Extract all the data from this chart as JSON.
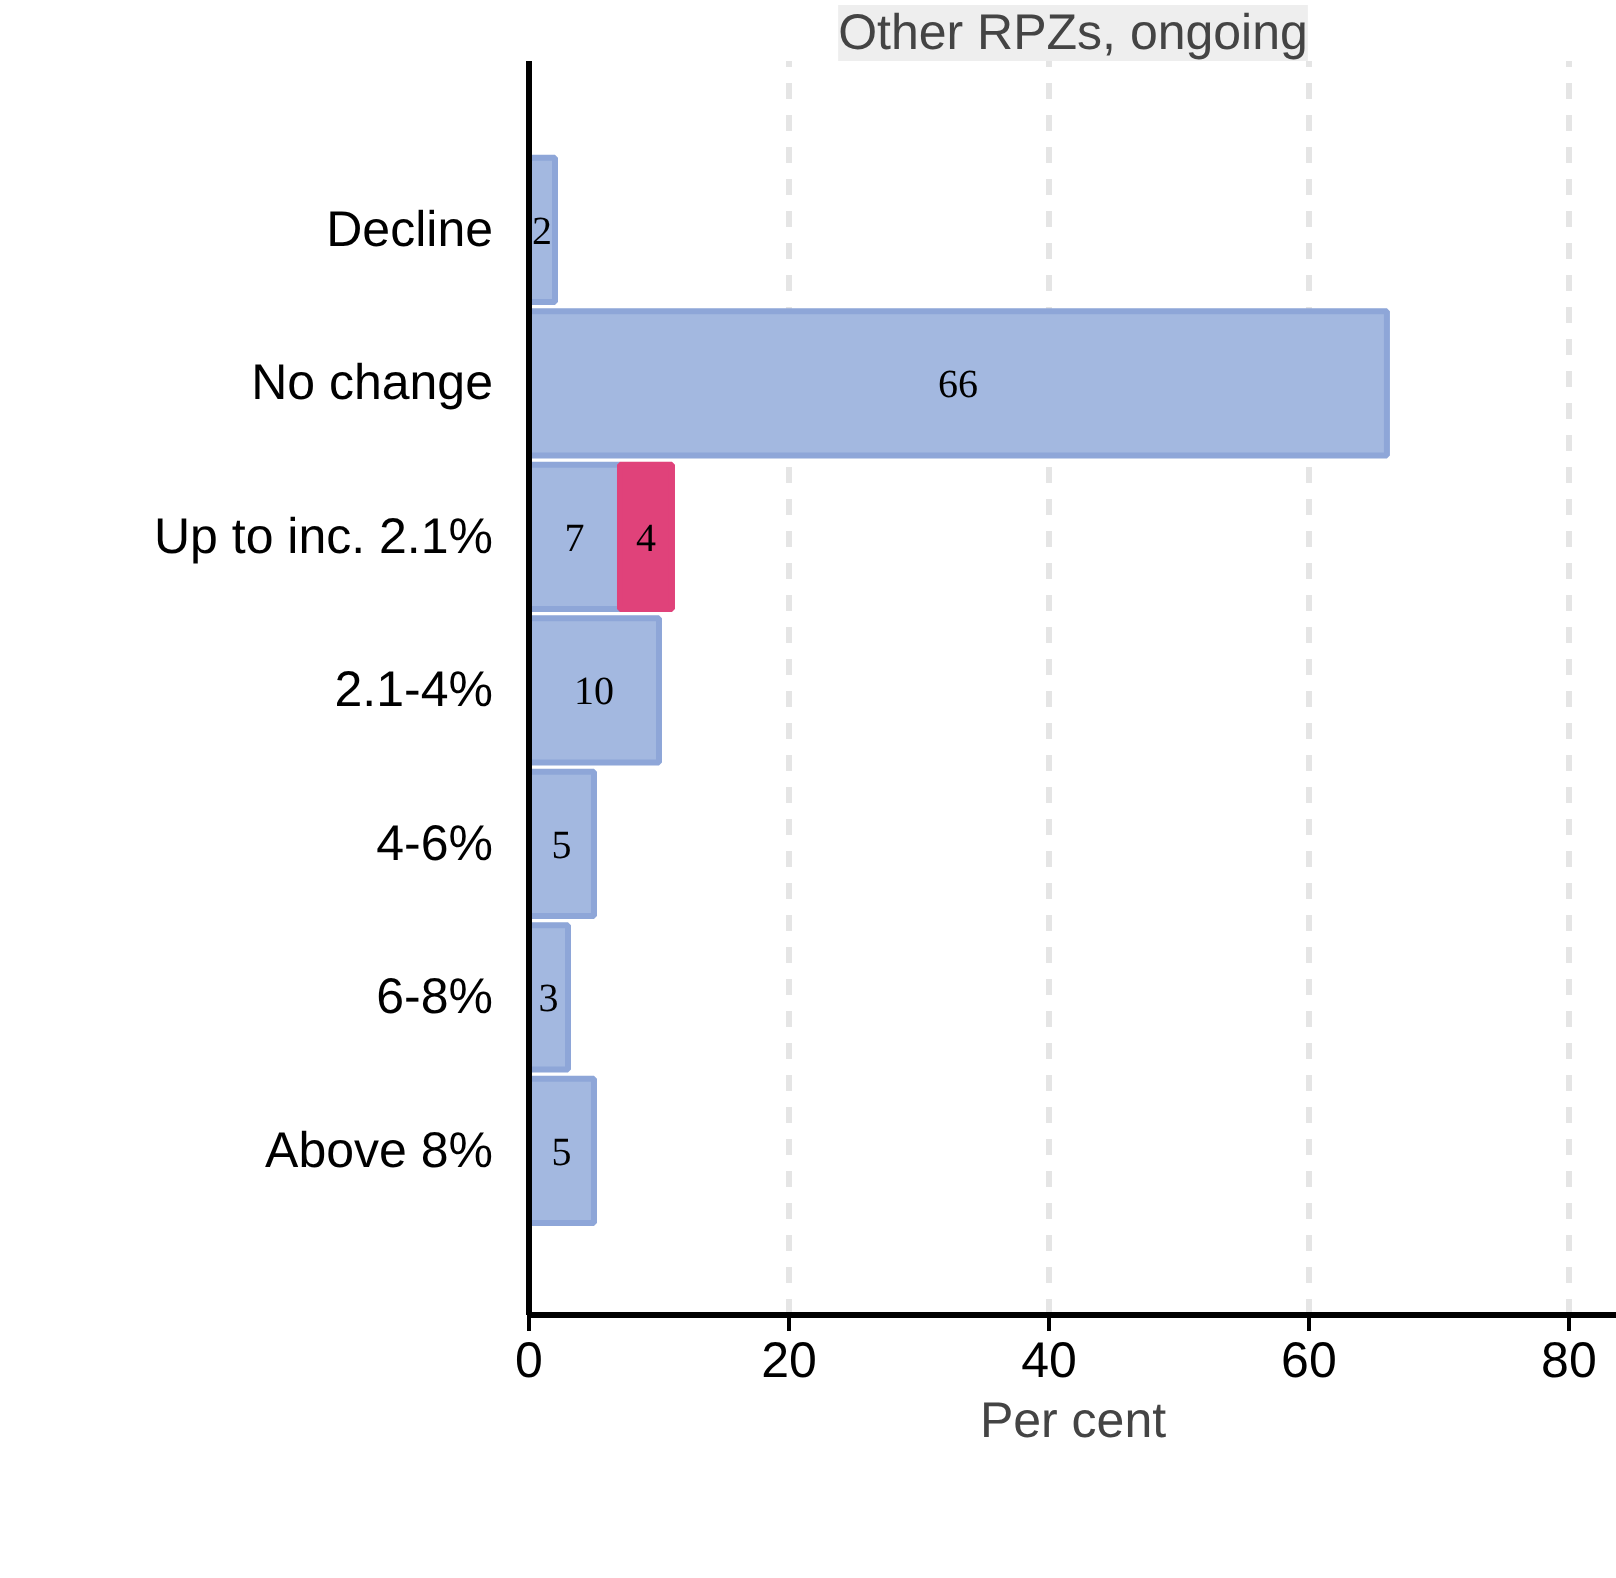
{
  "chart_data": {
    "type": "bar",
    "orientation": "horizontal",
    "stacked": true,
    "title": "Other RPZs, ongoing",
    "xlabel": "Per cent",
    "categories": [
      "Decline",
      "No change",
      "Up to inc. 2.1%",
      "2.1-4%",
      "4-6%",
      "6-8%",
      "Above 8%"
    ],
    "series": [
      {
        "color": "#a3b8e0",
        "values": [
          2,
          66,
          7,
          10,
          5,
          3,
          5
        ]
      },
      {
        "color": "#e0427a",
        "values": [
          null,
          null,
          4,
          null,
          null,
          null,
          null
        ]
      }
    ],
    "xlim": [
      0,
      83.7
    ],
    "xticks": [
      0,
      20,
      40,
      60,
      80
    ],
    "grid": "x",
    "data_labels": true
  }
}
